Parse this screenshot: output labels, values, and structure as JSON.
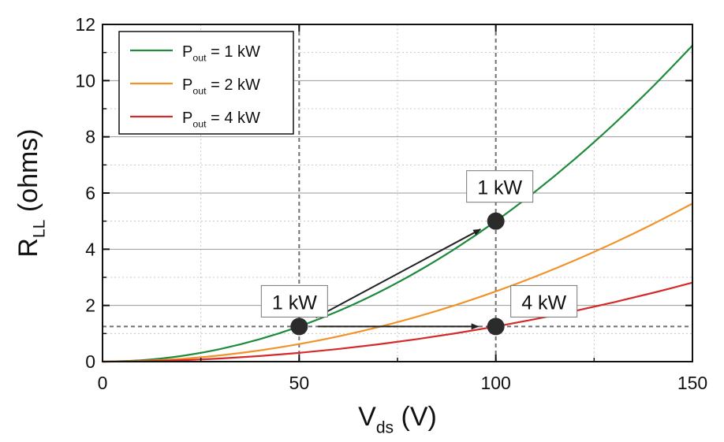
{
  "chart_data": {
    "type": "line",
    "xlabel": {
      "main": "V",
      "sub": "ds",
      "suffix": " (V)"
    },
    "ylabel": {
      "main": "R",
      "sub": "LL",
      "suffix": " (ohms)"
    },
    "xlim": [
      0,
      150
    ],
    "ylim": [
      0,
      12
    ],
    "x_ticks": [
      0,
      50,
      100,
      150
    ],
    "y_ticks": [
      0,
      2,
      4,
      6,
      8,
      10,
      12
    ],
    "grid": "major horizontal solid, minor dotted",
    "legend_position": "top-left",
    "x": [
      0,
      10,
      20,
      30,
      40,
      50,
      60,
      70,
      80,
      90,
      100,
      110,
      120,
      130,
      140,
      150
    ],
    "series": [
      {
        "name": {
          "main": "P",
          "sub": "out",
          "suffix": " = 1 kW"
        },
        "color": "#1e8a3c",
        "values": [
          0,
          0.05,
          0.2,
          0.45,
          0.8,
          1.25,
          1.8,
          2.45,
          3.2,
          4.05,
          5.0,
          6.05,
          7.2,
          8.45,
          9.8,
          11.25
        ]
      },
      {
        "name": {
          "main": "P",
          "sub": "out",
          "suffix": " = 2 kW"
        },
        "color": "#f0932b",
        "values": [
          0,
          0.025,
          0.1,
          0.225,
          0.4,
          0.625,
          0.9,
          1.225,
          1.6,
          2.025,
          2.5,
          3.025,
          3.6,
          4.225,
          4.9,
          5.625
        ]
      },
      {
        "name": {
          "main": "P",
          "sub": "out",
          "suffix": " = 4 kW"
        },
        "color": "#d42a2a",
        "values": [
          0,
          0.0125,
          0.05,
          0.1125,
          0.2,
          0.3125,
          0.45,
          0.6125,
          0.8,
          1.0125,
          1.25,
          1.5125,
          1.8,
          2.1125,
          2.45,
          2.8125
        ]
      }
    ],
    "reference_lines": {
      "vertical_x": [
        50,
        100
      ],
      "horizontal_y": [
        1.25
      ]
    },
    "points": [
      {
        "x": 50,
        "y": 1.25
      },
      {
        "x": 100,
        "y": 5.0
      },
      {
        "x": 100,
        "y": 1.25
      }
    ],
    "annotations": [
      {
        "text": "1 kW",
        "x": 50,
        "y": 1.25
      },
      {
        "text": "1 kW",
        "x": 100,
        "y": 5.0
      },
      {
        "text": "4 kW",
        "x": 100,
        "y": 1.25
      }
    ],
    "arrows": [
      {
        "from": [
          50,
          1.25
        ],
        "to": [
          100,
          5.0
        ]
      },
      {
        "from": [
          50,
          1.25
        ],
        "to": [
          100,
          1.25
        ]
      }
    ]
  }
}
